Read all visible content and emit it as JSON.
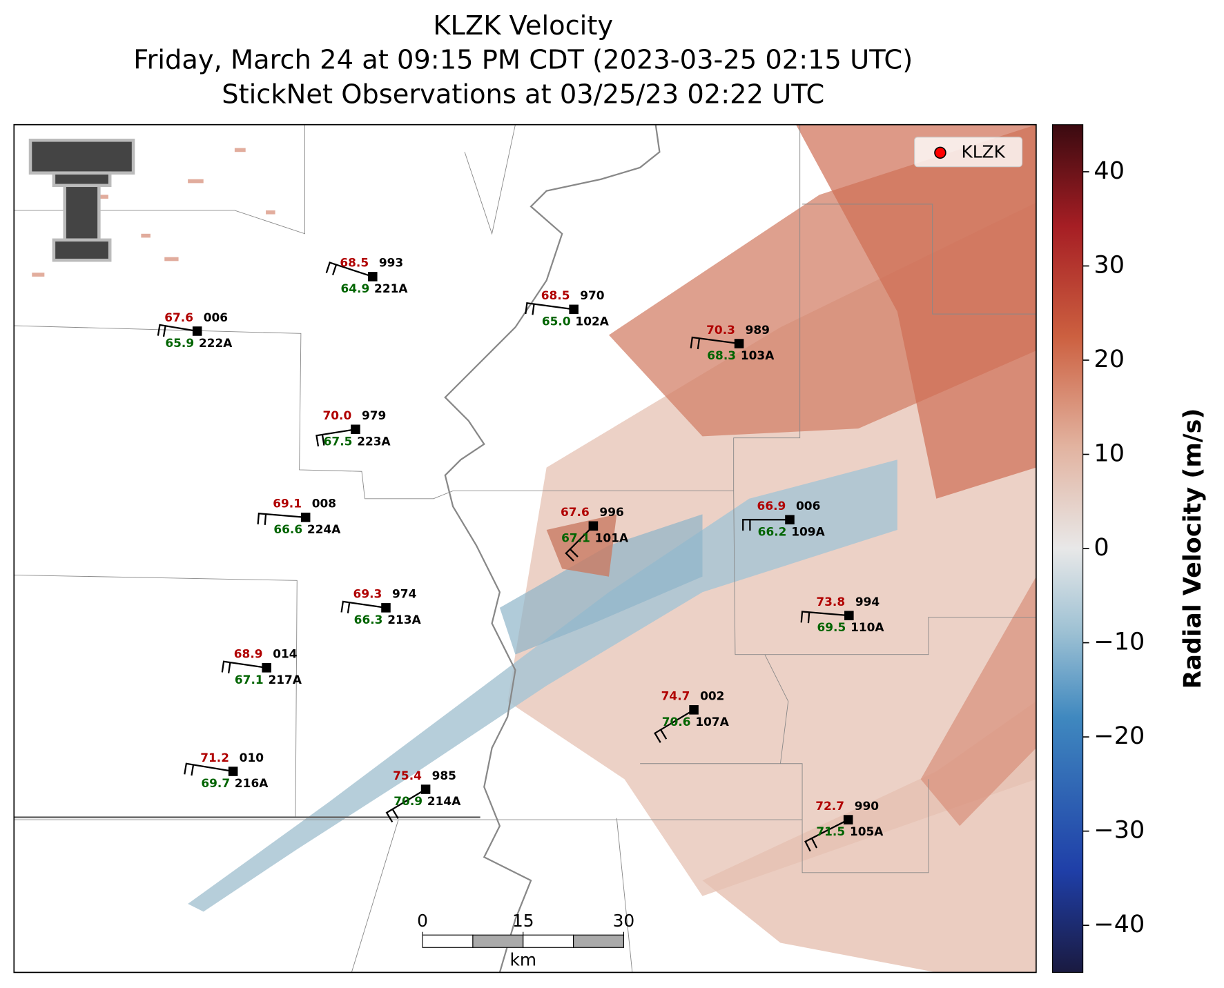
{
  "title": [
    "KLZK Velocity",
    "Friday, March 24 at 09:15 PM CDT (2023-03-25 02:15 UTC)",
    "StickNet Observations at 03/25/23 02:22 UTC"
  ],
  "legend": {
    "label": "KLZK",
    "color": "#ff0000"
  },
  "stations": [
    {
      "id": "221A",
      "temperature": "68.5",
      "dewpoint": "64.9",
      "pressure": "993"
    },
    {
      "id": "222A",
      "temperature": "67.6",
      "dewpoint": "65.9",
      "pressure": "006"
    },
    {
      "id": "102A",
      "temperature": "68.5",
      "dewpoint": "65.0",
      "pressure": "970"
    },
    {
      "id": "103A",
      "temperature": "70.3",
      "dewpoint": "68.3",
      "pressure": "989"
    },
    {
      "id": "223A",
      "temperature": "70.0",
      "dewpoint": "67.5",
      "pressure": "979"
    },
    {
      "id": "224A",
      "temperature": "69.1",
      "dewpoint": "66.6",
      "pressure": "008"
    },
    {
      "id": "101A",
      "temperature": "67.6",
      "dewpoint": "67.1",
      "pressure": "996"
    },
    {
      "id": "109A",
      "temperature": "66.9",
      "dewpoint": "66.2",
      "pressure": "006"
    },
    {
      "id": "213A",
      "temperature": "69.3",
      "dewpoint": "66.3",
      "pressure": "974"
    },
    {
      "id": "110A",
      "temperature": "73.8",
      "dewpoint": "69.5",
      "pressure": "994"
    },
    {
      "id": "217A",
      "temperature": "68.9",
      "dewpoint": "67.1",
      "pressure": "014"
    },
    {
      "id": "107A",
      "temperature": "74.7",
      "dewpoint": "70.6",
      "pressure": "002"
    },
    {
      "id": "216A",
      "temperature": "71.2",
      "dewpoint": "69.7",
      "pressure": "010"
    },
    {
      "id": "214A",
      "temperature": "75.4",
      "dewpoint": "70.9",
      "pressure": "985"
    },
    {
      "id": "105A",
      "temperature": "72.7",
      "dewpoint": "71.5",
      "pressure": "990"
    }
  ],
  "colorbar": {
    "label": "Radial Velocity (m/s)",
    "lim": [
      -45,
      45
    ],
    "ticks": [
      40,
      30,
      20,
      10,
      0,
      {
        "value": -10,
        "label": "−10"
      },
      {
        "value": -20,
        "label": "−20"
      },
      {
        "value": -30,
        "label": "−30"
      },
      {
        "value": -40,
        "label": "−40"
      }
    ]
  },
  "scale_bar": {
    "ticks": [
      0,
      15,
      30
    ],
    "unit": "km"
  }
}
